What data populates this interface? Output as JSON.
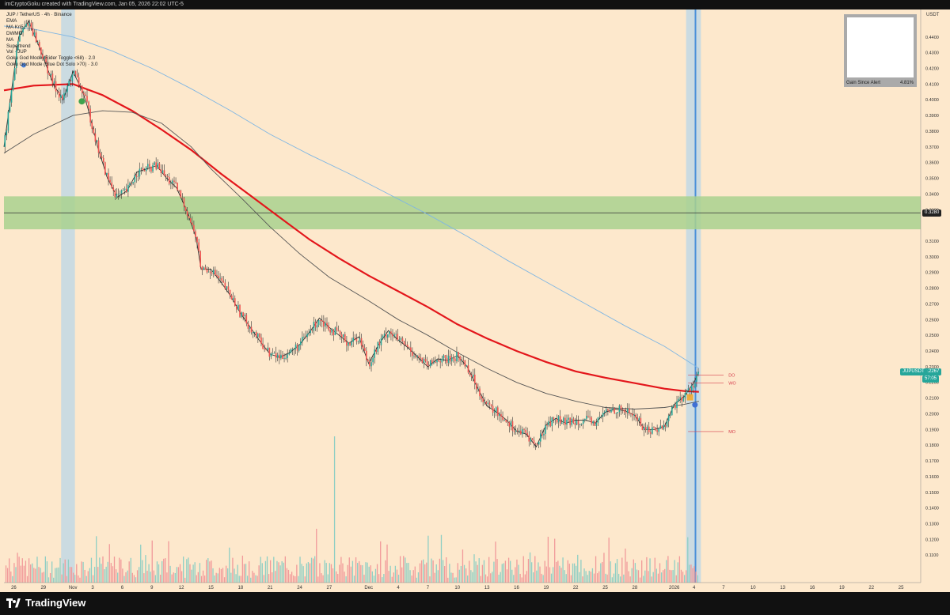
{
  "header": {
    "text": "imCryptoGoku created with TradingView.com, Jan 05, 2026 22:02 UTC-5"
  },
  "legend": [
    "JUP / TetherUS · 4h · Binance",
    "EMA",
    "MA Kri5",
    "DWMO",
    "MA",
    "Supertrend",
    "Vol · JUP",
    "Goku God Mode (Rider Toggle <68) · 2.0",
    "Goku God Mode (Blue Dot Solo >70) · 3.0"
  ],
  "alert": {
    "label": "Gain Since Alert",
    "value": "4.81%"
  },
  "footer": {
    "brand": "TradingView"
  },
  "colors": {
    "background": "#fde8cc",
    "ema_red": "#e3161b",
    "ma_blue": "#7fb6e3",
    "ma_dark": "#555555",
    "zone_green": "#a9d18e",
    "vol_up": "#8fcfc4",
    "vol_down": "#f19a9a",
    "alert_band": "#b9d7e8"
  },
  "chart_data": {
    "type": "line",
    "symbol": "JUP / TetherUS",
    "timeframe": "4h",
    "exchange": "Binance",
    "y_unit": "USDT",
    "ylim": [
      0.0925,
      0.4575
    ],
    "y_ticks": [
      "0.4400",
      "0.4300",
      "0.4200",
      "0.4100",
      "0.4000",
      "0.3900",
      "0.3800",
      "0.3700",
      "0.3600",
      "0.3500",
      "0.3400",
      "0.3300",
      "0.3100",
      "0.3000",
      "0.2900",
      "0.2800",
      "0.2700",
      "0.2600",
      "0.2500",
      "0.2400",
      "0.2300",
      "0.2200",
      "0.2100",
      "0.2000",
      "0.1900",
      "0.1800",
      "0.1700",
      "0.1600",
      "0.1500",
      "0.1400",
      "0.1300",
      "0.1200",
      "0.1100"
    ],
    "x_ticks": [
      "26",
      "29",
      "Nov",
      "3",
      "6",
      "9",
      "12",
      "15",
      "18",
      "21",
      "24",
      "27",
      "Dec",
      "4",
      "7",
      "10",
      "13",
      "16",
      "19",
      "22",
      "25",
      "28",
      "2026",
      "4",
      "7",
      "10",
      "13",
      "16",
      "19",
      "22",
      "25"
    ],
    "x_tick_days": [
      -6,
      -3,
      0,
      2,
      5,
      8,
      11,
      14,
      17,
      20,
      23,
      26,
      30,
      33,
      36,
      39,
      42,
      45,
      48,
      51,
      54,
      57,
      61,
      63,
      66,
      69,
      72,
      75,
      78,
      81,
      84
    ],
    "current_price": "0.2267",
    "current_price_label": "JUPUSDT",
    "current_countdown": "57:05",
    "marked_level": "0.3280",
    "zone": [
      0.3175,
      0.3385
    ],
    "levels": [
      {
        "label": "DO",
        "price": 0.2247
      },
      {
        "label": "WO",
        "price": 0.2197
      },
      {
        "label": "MO",
        "price": 0.1887
      }
    ],
    "series": [
      {
        "name": "EMA",
        "color": "#e3161b",
        "points": [
          [
            -7,
            0.406
          ],
          [
            -4,
            0.409
          ],
          [
            0,
            0.41
          ],
          [
            3,
            0.403
          ],
          [
            6,
            0.393
          ],
          [
            9,
            0.381
          ],
          [
            12,
            0.368
          ],
          [
            15,
            0.353
          ],
          [
            18,
            0.339
          ],
          [
            21,
            0.325
          ],
          [
            24,
            0.311
          ],
          [
            27,
            0.299
          ],
          [
            30,
            0.288
          ],
          [
            33,
            0.278
          ],
          [
            36,
            0.268
          ],
          [
            39,
            0.257
          ],
          [
            42,
            0.248
          ],
          [
            45,
            0.24
          ],
          [
            48,
            0.233
          ],
          [
            51,
            0.227
          ],
          [
            54,
            0.223
          ],
          [
            57,
            0.2195
          ],
          [
            60,
            0.216
          ],
          [
            62,
            0.2145
          ],
          [
            63.5,
            0.214
          ]
        ]
      },
      {
        "name": "MA",
        "color": "#7fb6e3",
        "points": [
          [
            -7,
            0.447
          ],
          [
            -4,
            0.445
          ],
          [
            0,
            0.44
          ],
          [
            4,
            0.431
          ],
          [
            8,
            0.42
          ],
          [
            12,
            0.407
          ],
          [
            16,
            0.393
          ],
          [
            20,
            0.378
          ],
          [
            24,
            0.365
          ],
          [
            28,
            0.353
          ],
          [
            32,
            0.34
          ],
          [
            36,
            0.327
          ],
          [
            40,
            0.313
          ],
          [
            44,
            0.298
          ],
          [
            48,
            0.284
          ],
          [
            52,
            0.27
          ],
          [
            56,
            0.256
          ],
          [
            60,
            0.243
          ],
          [
            63.5,
            0.229
          ]
        ]
      },
      {
        "name": "DWMO",
        "color": "#555555",
        "points": [
          [
            -7,
            0.366
          ],
          [
            -4,
            0.378
          ],
          [
            0,
            0.39
          ],
          [
            3,
            0.393
          ],
          [
            6,
            0.392
          ],
          [
            9,
            0.385
          ],
          [
            12,
            0.37
          ],
          [
            14,
            0.356
          ],
          [
            17,
            0.338
          ],
          [
            20,
            0.319
          ],
          [
            23,
            0.302
          ],
          [
            26,
            0.287
          ],
          [
            30,
            0.272
          ],
          [
            33,
            0.26
          ],
          [
            36,
            0.25
          ],
          [
            39,
            0.239
          ],
          [
            42,
            0.229
          ],
          [
            45,
            0.22
          ],
          [
            48,
            0.213
          ],
          [
            51,
            0.208
          ],
          [
            54,
            0.204
          ],
          [
            57,
            0.203
          ],
          [
            60,
            0.204
          ],
          [
            62,
            0.206
          ],
          [
            63.5,
            0.208
          ]
        ]
      },
      {
        "name": "Close",
        "color": "#333333",
        "points": [
          [
            -7,
            0.37
          ],
          [
            -5.5,
            0.44
          ],
          [
            -4.5,
            0.45
          ],
          [
            -3.5,
            0.435
          ],
          [
            -2,
            0.41
          ],
          [
            -1,
            0.4
          ],
          [
            0,
            0.418
          ],
          [
            1,
            0.405
          ],
          [
            1.5,
            0.395
          ],
          [
            2.5,
            0.37
          ],
          [
            3.5,
            0.35
          ],
          [
            4.5,
            0.338
          ],
          [
            5.5,
            0.342
          ],
          [
            6.5,
            0.354
          ],
          [
            7.5,
            0.356
          ],
          [
            8.5,
            0.358
          ],
          [
            9.5,
            0.35
          ],
          [
            10.5,
            0.344
          ],
          [
            11.5,
            0.33
          ],
          [
            12.5,
            0.312
          ],
          [
            13,
            0.292
          ],
          [
            14,
            0.292
          ],
          [
            15,
            0.284
          ],
          [
            16,
            0.275
          ],
          [
            17,
            0.264
          ],
          [
            18,
            0.255
          ],
          [
            19,
            0.246
          ],
          [
            20,
            0.238
          ],
          [
            21,
            0.236
          ],
          [
            22,
            0.239
          ],
          [
            23,
            0.244
          ],
          [
            24,
            0.252
          ],
          [
            25,
            0.261
          ],
          [
            26,
            0.255
          ],
          [
            27,
            0.25
          ],
          [
            28,
            0.245
          ],
          [
            29,
            0.249
          ],
          [
            30,
            0.232
          ],
          [
            31,
            0.244
          ],
          [
            32,
            0.253
          ],
          [
            33,
            0.247
          ],
          [
            34,
            0.242
          ],
          [
            35,
            0.236
          ],
          [
            36,
            0.23
          ],
          [
            37,
            0.235
          ],
          [
            38,
            0.234
          ],
          [
            39,
            0.237
          ],
          [
            40,
            0.23
          ],
          [
            41,
            0.217
          ],
          [
            42,
            0.205
          ],
          [
            43,
            0.201
          ],
          [
            44,
            0.196
          ],
          [
            45,
            0.189
          ],
          [
            46,
            0.187
          ],
          [
            47,
            0.179
          ],
          [
            48,
            0.193
          ],
          [
            49,
            0.197
          ],
          [
            50,
            0.194
          ],
          [
            51,
            0.196
          ],
          [
            52,
            0.196
          ],
          [
            53,
            0.194
          ],
          [
            54,
            0.201
          ],
          [
            55,
            0.203
          ],
          [
            56,
            0.202
          ],
          [
            57,
            0.199
          ],
          [
            58,
            0.19
          ],
          [
            59,
            0.19
          ],
          [
            60,
            0.192
          ],
          [
            61,
            0.206
          ],
          [
            62,
            0.211
          ],
          [
            63,
            0.22
          ],
          [
            63.5,
            0.2267
          ]
        ]
      }
    ]
  }
}
